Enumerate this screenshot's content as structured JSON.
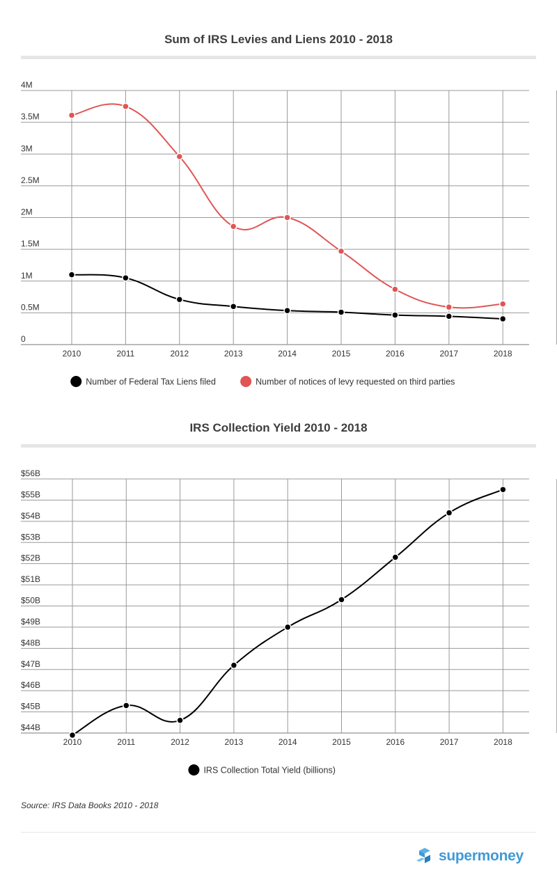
{
  "chart_data": [
    {
      "type": "line",
      "title": "Sum of IRS Levies and Liens 2010 - 2018",
      "x": [
        "2010",
        "2011",
        "2012",
        "2013",
        "2014",
        "2015",
        "2016",
        "2017",
        "2018"
      ],
      "yticks": [
        "0",
        "0.5M",
        "1M",
        "1.5M",
        "2M",
        "2.5M",
        "3M",
        "3.5M",
        "4M"
      ],
      "ylim": [
        0,
        4000000
      ],
      "grid": true,
      "legend_position": "bottom",
      "series": [
        {
          "name": "Number of Federal Tax Liens filed",
          "color": "#000000",
          "values": [
            1100000,
            1050000,
            710000,
            600000,
            535000,
            510000,
            465000,
            445000,
            405000
          ]
        },
        {
          "name": "Number of notices of levy requested on third parties",
          "color": "#e05555",
          "values": [
            3610000,
            3750000,
            2960000,
            1860000,
            2000000,
            1470000,
            870000,
            590000,
            640000
          ]
        }
      ]
    },
    {
      "type": "line",
      "title": "IRS Collection Yield  2010 - 2018",
      "x": [
        "2010",
        "2011",
        "2012",
        "2013",
        "2014",
        "2015",
        "2016",
        "2017",
        "2018"
      ],
      "yticks": [
        "$44B",
        "$45B",
        "$46B",
        "$47B",
        "$48B",
        "$49B",
        "$50B",
        "$51B",
        "$52B",
        "$53B",
        "$54B",
        "$55B",
        "$56B"
      ],
      "ylim": [
        44,
        56
      ],
      "grid": true,
      "legend_position": "bottom",
      "series": [
        {
          "name": "IRS Collection Total Yield (billions)",
          "color": "#000000",
          "values": [
            43.9,
            45.3,
            44.6,
            47.2,
            49.0,
            50.3,
            52.3,
            54.4,
            55.5
          ]
        }
      ]
    }
  ],
  "source": "Source: IRS Data Books 2010 - 2018",
  "brand": {
    "name": "supermoney",
    "color": "#3f9ad6"
  }
}
